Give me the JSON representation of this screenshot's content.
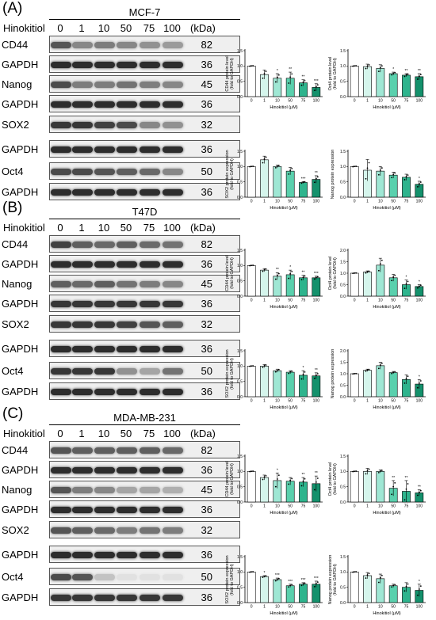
{
  "doses": [
    "0",
    "1",
    "10",
    "50",
    "75",
    "100"
  ],
  "treatment_label": "Hinokitiol",
  "kda_label": "(kDa)",
  "xlabel": "Hinokitiol (μM)",
  "colors": [
    "#ffffff",
    "#d5f5ec",
    "#9fe7d4",
    "#5ad0ad",
    "#2eb48d",
    "#14916c"
  ],
  "panels": [
    {
      "letter": "(A)",
      "cell_line": "MCF-7",
      "blots": [
        {
          "name": "CD44",
          "kda": "82",
          "intensity": [
            0.75,
            0.5,
            0.55,
            0.5,
            0.45,
            0.4
          ]
        },
        {
          "name": "GAPDH",
          "kda": "36",
          "intensity": [
            0.95,
            0.95,
            0.95,
            0.95,
            0.95,
            0.95
          ]
        },
        {
          "name": "Nanog",
          "kda": "45",
          "intensity": [
            0.8,
            0.55,
            0.55,
            0.6,
            0.55,
            0.5
          ]
        },
        {
          "name": "GAPDH",
          "kda": "36",
          "intensity": [
            0.95,
            0.95,
            0.95,
            0.95,
            0.95,
            0.95
          ]
        },
        {
          "name": "SOX2",
          "kda": "32",
          "intensity": [
            0.9,
            0.9,
            0.85,
            0.8,
            0.5,
            0.45
          ]
        },
        {
          "name": "GAPDH",
          "kda": "36",
          "intensity": [
            0.95,
            0.95,
            0.95,
            0.95,
            0.95,
            0.95
          ]
        },
        {
          "name": "Oct4",
          "kda": "50",
          "intensity": [
            0.8,
            0.8,
            0.75,
            0.7,
            0.65,
            0.5
          ]
        },
        {
          "name": "GAPDH",
          "kda": "36",
          "intensity": [
            0.95,
            0.95,
            0.95,
            0.95,
            0.95,
            0.95
          ]
        }
      ],
      "charts": [
        {
          "ylabel": "CD44 protein level\n(fold to GAPDH)",
          "ylim": [
            0,
            1.5
          ],
          "ticks": [
            "0.0",
            "0.5",
            "1.0",
            "1.5"
          ],
          "tickvals": [
            0,
            0.5,
            1,
            1.5
          ],
          "values": [
            1.0,
            0.72,
            0.6,
            0.6,
            0.45,
            0.3
          ],
          "errors": [
            0.01,
            0.15,
            0.15,
            0.2,
            0.1,
            0.12
          ],
          "sig": [
            "",
            "",
            "*",
            "**",
            "**",
            "***"
          ]
        },
        {
          "ylabel": "Oct4 protein level\n(fold to GAPDH)",
          "ylim": [
            0,
            1.5
          ],
          "ticks": [
            "0.0",
            "0.5",
            "1.0",
            "1.5"
          ],
          "tickvals": [
            0,
            0.5,
            1,
            1.5
          ],
          "values": [
            1.0,
            0.98,
            0.92,
            0.75,
            0.7,
            0.65
          ],
          "errors": [
            0.01,
            0.08,
            0.12,
            0.05,
            0.05,
            0.1
          ],
          "sig": [
            "",
            "",
            "",
            "*",
            "**",
            "**"
          ]
        },
        {
          "ylabel": "SOX2 protein expression\n(fold to GAPDH)",
          "ylim": [
            0,
            1.5
          ],
          "ticks": [
            "0.0",
            "0.5",
            "1.0",
            "1.5"
          ],
          "tickvals": [
            0,
            0.5,
            1,
            1.5
          ],
          "values": [
            1.0,
            1.22,
            1.0,
            0.85,
            0.48,
            0.58
          ],
          "errors": [
            0.01,
            0.12,
            0.05,
            0.12,
            0.03,
            0.12
          ],
          "sig": [
            "",
            "",
            "",
            "",
            "***",
            "**"
          ]
        },
        {
          "ylabel": "Nanog protein expression",
          "ylim": [
            0,
            1.5
          ],
          "ticks": [
            "0.0",
            "0.5",
            "1.0",
            "1.5"
          ],
          "tickvals": [
            0,
            0.5,
            1,
            1.5
          ],
          "values": [
            1.0,
            0.88,
            0.85,
            0.72,
            0.65,
            0.42
          ],
          "errors": [
            0.01,
            0.35,
            0.15,
            0.1,
            0.1,
            0.1
          ],
          "sig": [
            "",
            "",
            "",
            "",
            "",
            "*"
          ]
        }
      ]
    },
    {
      "letter": "(B)",
      "cell_line": "T47D",
      "blots": [
        {
          "name": "CD44",
          "kda": "82",
          "intensity": [
            0.85,
            0.7,
            0.65,
            0.7,
            0.65,
            0.6
          ]
        },
        {
          "name": "GAPDH",
          "kda": "36",
          "intensity": [
            0.95,
            0.95,
            0.95,
            0.95,
            0.95,
            0.95
          ]
        },
        {
          "name": "Nanog",
          "kda": "45",
          "intensity": [
            0.7,
            0.65,
            0.7,
            0.6,
            0.55,
            0.5
          ]
        },
        {
          "name": "GAPDH",
          "kda": "36",
          "intensity": [
            0.9,
            0.9,
            0.9,
            0.9,
            0.9,
            0.9
          ]
        },
        {
          "name": "SOX2",
          "kda": "32",
          "intensity": [
            0.9,
            0.9,
            0.9,
            0.85,
            0.75,
            0.7
          ]
        },
        {
          "name": "GAPDH",
          "kda": "36",
          "intensity": [
            0.95,
            0.95,
            0.95,
            0.95,
            0.95,
            0.95
          ]
        },
        {
          "name": "Oct4",
          "kda": "50",
          "intensity": [
            0.9,
            0.9,
            0.9,
            0.45,
            0.35,
            0.6
          ]
        },
        {
          "name": "GAPDH",
          "kda": "36",
          "intensity": [
            0.95,
            0.95,
            0.95,
            0.95,
            0.95,
            0.95
          ]
        }
      ],
      "charts": [
        {
          "ylabel": "CD44 protein level\n(fold to GAPDH)",
          "ylim": [
            0,
            1.5
          ],
          "ticks": [
            "0.0",
            "0.5",
            "1.0",
            "1.5"
          ],
          "tickvals": [
            0,
            0.5,
            1,
            1.5
          ],
          "values": [
            1.0,
            0.85,
            0.65,
            0.7,
            0.6,
            0.6
          ],
          "errors": [
            0.01,
            0.05,
            0.12,
            0.15,
            0.08,
            0.05
          ],
          "sig": [
            "",
            "",
            "**",
            "*",
            "**",
            "***"
          ]
        },
        {
          "ylabel": "Oct4 protein level\n(fold to GAPDH)",
          "ylim": [
            0,
            2.0
          ],
          "ticks": [
            "0.0",
            "0.5",
            "1.0",
            "1.5",
            "2.0"
          ],
          "tickvals": [
            0,
            0.5,
            1,
            1.5,
            2
          ],
          "values": [
            1.0,
            1.05,
            1.35,
            0.8,
            0.5,
            0.42
          ],
          "errors": [
            0.01,
            0.05,
            0.3,
            0.15,
            0.2,
            0.08
          ],
          "sig": [
            "",
            "",
            "",
            "",
            "*",
            "*"
          ]
        },
        {
          "ylabel": "SOX2 protein expression\n(fold to GAPDH)",
          "ylim": [
            0,
            1.5
          ],
          "ticks": [
            "0.0",
            "0.5",
            "1.0",
            "1.5"
          ],
          "tickvals": [
            0,
            0.5,
            1,
            1.5
          ],
          "values": [
            1.0,
            1.0,
            0.85,
            0.8,
            0.7,
            0.68
          ],
          "errors": [
            0.01,
            0.05,
            0.05,
            0.05,
            0.15,
            0.1
          ],
          "sig": [
            "",
            "",
            "",
            "",
            "*",
            "**"
          ]
        },
        {
          "ylabel": "Nanog protein expression",
          "ylim": [
            0,
            2.0
          ],
          "ticks": [
            "0.0",
            "0.5",
            "1.0",
            "1.5",
            "2.0"
          ],
          "tickvals": [
            0,
            0.5,
            1,
            1.5,
            2
          ],
          "values": [
            1.0,
            1.15,
            1.35,
            1.05,
            0.75,
            0.55
          ],
          "errors": [
            0.01,
            0.05,
            0.15,
            0.05,
            0.2,
            0.2
          ],
          "sig": [
            "",
            "",
            "",
            "",
            "",
            "*"
          ]
        }
      ]
    },
    {
      "letter": "(C)",
      "cell_line": "MDA-MB-231",
      "blots": [
        {
          "name": "CD44",
          "kda": "82",
          "intensity": [
            0.75,
            0.7,
            0.7,
            0.7,
            0.7,
            0.65
          ]
        },
        {
          "name": "GAPDH",
          "kda": "36",
          "intensity": [
            0.95,
            0.95,
            0.95,
            0.95,
            0.95,
            0.95
          ]
        },
        {
          "name": "Nanog",
          "kda": "45",
          "intensity": [
            0.75,
            0.55,
            0.5,
            0.35,
            0.35,
            0.3
          ]
        },
        {
          "name": "GAPDH",
          "kda": "36",
          "intensity": [
            0.95,
            0.95,
            0.95,
            0.95,
            0.95,
            0.95
          ]
        },
        {
          "name": "SOX2",
          "kda": "32",
          "intensity": [
            0.75,
            0.7,
            0.65,
            0.55,
            0.6,
            0.55
          ]
        },
        {
          "name": "GAPDH",
          "kda": "36",
          "intensity": [
            0.95,
            0.95,
            0.95,
            0.95,
            0.95,
            0.95
          ]
        },
        {
          "name": "Oct4",
          "kda": "50",
          "intensity": [
            0.8,
            0.75,
            0.2,
            0.05,
            0.05,
            0.05
          ]
        },
        {
          "name": "GAPDH",
          "kda": "36",
          "intensity": [
            0.9,
            0.9,
            0.9,
            0.9,
            0.9,
            0.9
          ]
        }
      ],
      "charts": [
        {
          "ylabel": "CD44 protein level\n(fold to GAPDH)",
          "ylim": [
            0,
            1.5
          ],
          "ticks": [
            "0.0",
            "0.5",
            "1.0",
            "1.5"
          ],
          "tickvals": [
            0,
            0.5,
            1,
            1.5
          ],
          "values": [
            1.0,
            0.8,
            0.7,
            0.68,
            0.65,
            0.6
          ],
          "errors": [
            0.01,
            0.08,
            0.25,
            0.12,
            0.15,
            0.25
          ],
          "sig": [
            "",
            "",
            "*",
            "",
            "**",
            "**"
          ]
        },
        {
          "ylabel": "Oct4 protein level\n(fold to GAPDH)",
          "ylim": [
            0,
            1.5
          ],
          "ticks": [
            "0.0",
            "0.5",
            "1.0",
            "1.5"
          ],
          "tickvals": [
            0,
            0.5,
            1,
            1.5
          ],
          "values": [
            1.0,
            1.0,
            1.0,
            0.45,
            0.35,
            0.3
          ],
          "errors": [
            0.01,
            0.1,
            0.05,
            0.25,
            0.35,
            0.1
          ],
          "sig": [
            "",
            "",
            "",
            "**",
            "**",
            "**"
          ]
        },
        {
          "ylabel": "SOX2 protein expression\n(fold to GAPDH)",
          "ylim": [
            0,
            1.5
          ],
          "ticks": [
            "0.0",
            "0.5",
            "1.0",
            "1.5"
          ],
          "tickvals": [
            0,
            0.5,
            1,
            1.5
          ],
          "values": [
            1.0,
            0.85,
            0.75,
            0.55,
            0.6,
            0.6
          ],
          "errors": [
            0.01,
            0.03,
            0.05,
            0.05,
            0.05,
            0.1
          ],
          "sig": [
            "",
            "*",
            "***",
            "***",
            "***",
            "***"
          ]
        },
        {
          "ylabel": "Nanog protein expression\n(fold to GAPDH)",
          "ylim": [
            0,
            1.5
          ],
          "ticks": [
            "0.0",
            "0.5",
            "1.0",
            "1.5"
          ],
          "tickvals": [
            0,
            0.5,
            1,
            1.5
          ],
          "values": [
            1.0,
            0.88,
            0.78,
            0.55,
            0.5,
            0.4
          ],
          "errors": [
            0.01,
            0.1,
            0.15,
            0.05,
            0.15,
            0.2
          ],
          "sig": [
            "",
            "",
            "",
            "",
            "",
            "*"
          ]
        }
      ]
    }
  ]
}
